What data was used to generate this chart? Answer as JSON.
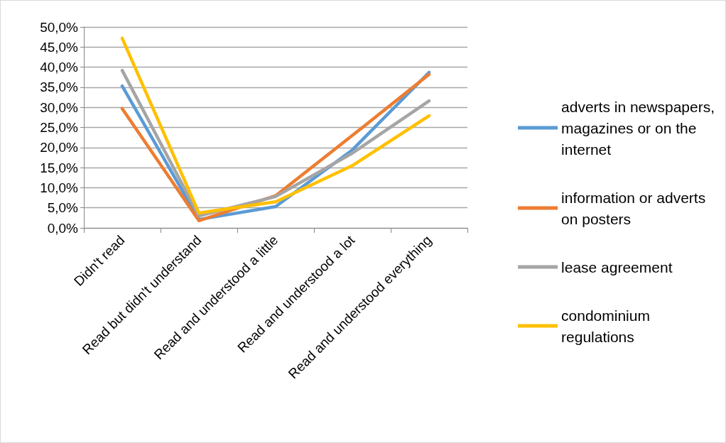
{
  "chart_data": {
    "type": "line",
    "categories": [
      "Didn't read",
      "Read but didn't understand",
      "Read and understood a little",
      "Read and understood a lot",
      "Read and understood everything"
    ],
    "series": [
      {
        "name": "adverts in newspapers, magazines or on the internet",
        "color": "#5b9bd5",
        "values": [
          35.3,
          2.1,
          5.3,
          19.4,
          38.7
        ]
      },
      {
        "name": "information or adverts on posters",
        "color": "#ed7d31",
        "values": [
          29.7,
          1.8,
          8.0,
          23.0,
          38.2
        ]
      },
      {
        "name": "lease agreement",
        "color": "#a5a5a5",
        "values": [
          39.2,
          3.0,
          7.8,
          18.6,
          31.6
        ]
      },
      {
        "name": "condominium regulations",
        "color": "#ffc000",
        "values": [
          47.2,
          3.7,
          6.5,
          15.5,
          27.9
        ]
      }
    ],
    "ylim": [
      0,
      50
    ],
    "yticks": [
      {
        "value": 0,
        "label": "0,0%"
      },
      {
        "value": 5,
        "label": "5,0%"
      },
      {
        "value": 10,
        "label": "10,0%"
      },
      {
        "value": 15,
        "label": "15,0%"
      },
      {
        "value": 20,
        "label": "20,0%"
      },
      {
        "value": 25,
        "label": "25,0%"
      },
      {
        "value": 30,
        "label": "30,0%"
      },
      {
        "value": 35,
        "label": "35,0%"
      },
      {
        "value": 40,
        "label": "40,0%"
      },
      {
        "value": 45,
        "label": "45,0%"
      },
      {
        "value": 50,
        "label": "50,0%"
      }
    ],
    "grid": "y",
    "legend": "right",
    "marker": "none",
    "line_style": "solid"
  }
}
